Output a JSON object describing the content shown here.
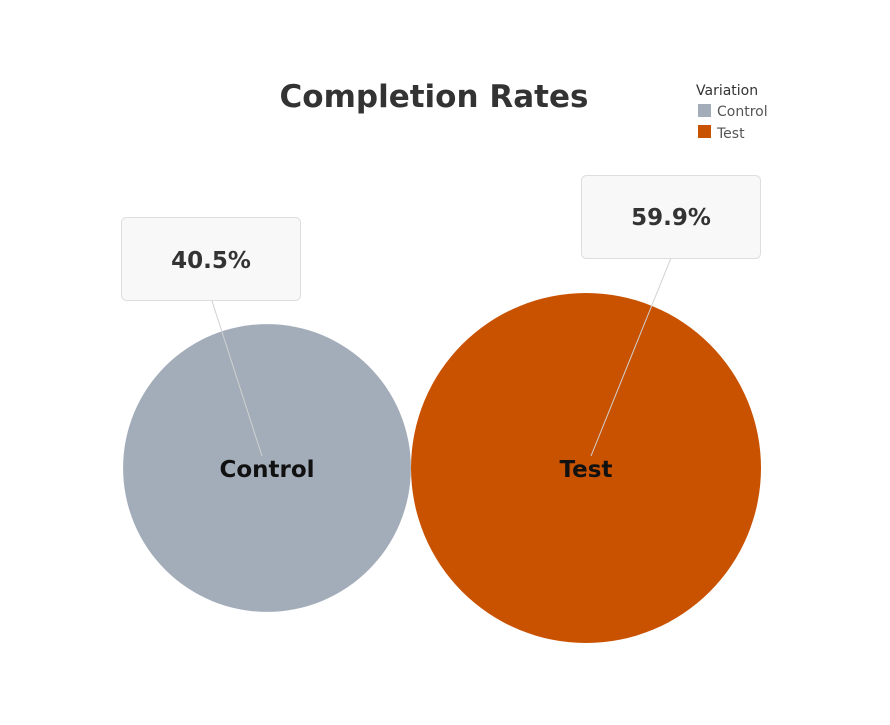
{
  "chart_data": {
    "type": "bubble",
    "title": "Completion Rates",
    "legend": {
      "title": "Variation",
      "placement": "top-right",
      "entries": [
        {
          "label": "Control",
          "color": "#a3adb9"
        },
        {
          "label": "Test",
          "color": "#c95200"
        }
      ]
    },
    "series": [
      {
        "name": "Control",
        "value": 40.5,
        "value_label": "40.5%",
        "color": "#a3adb9"
      },
      {
        "name": "Test",
        "value": 59.9,
        "value_label": "59.9%",
        "color": "#c95200"
      }
    ]
  }
}
